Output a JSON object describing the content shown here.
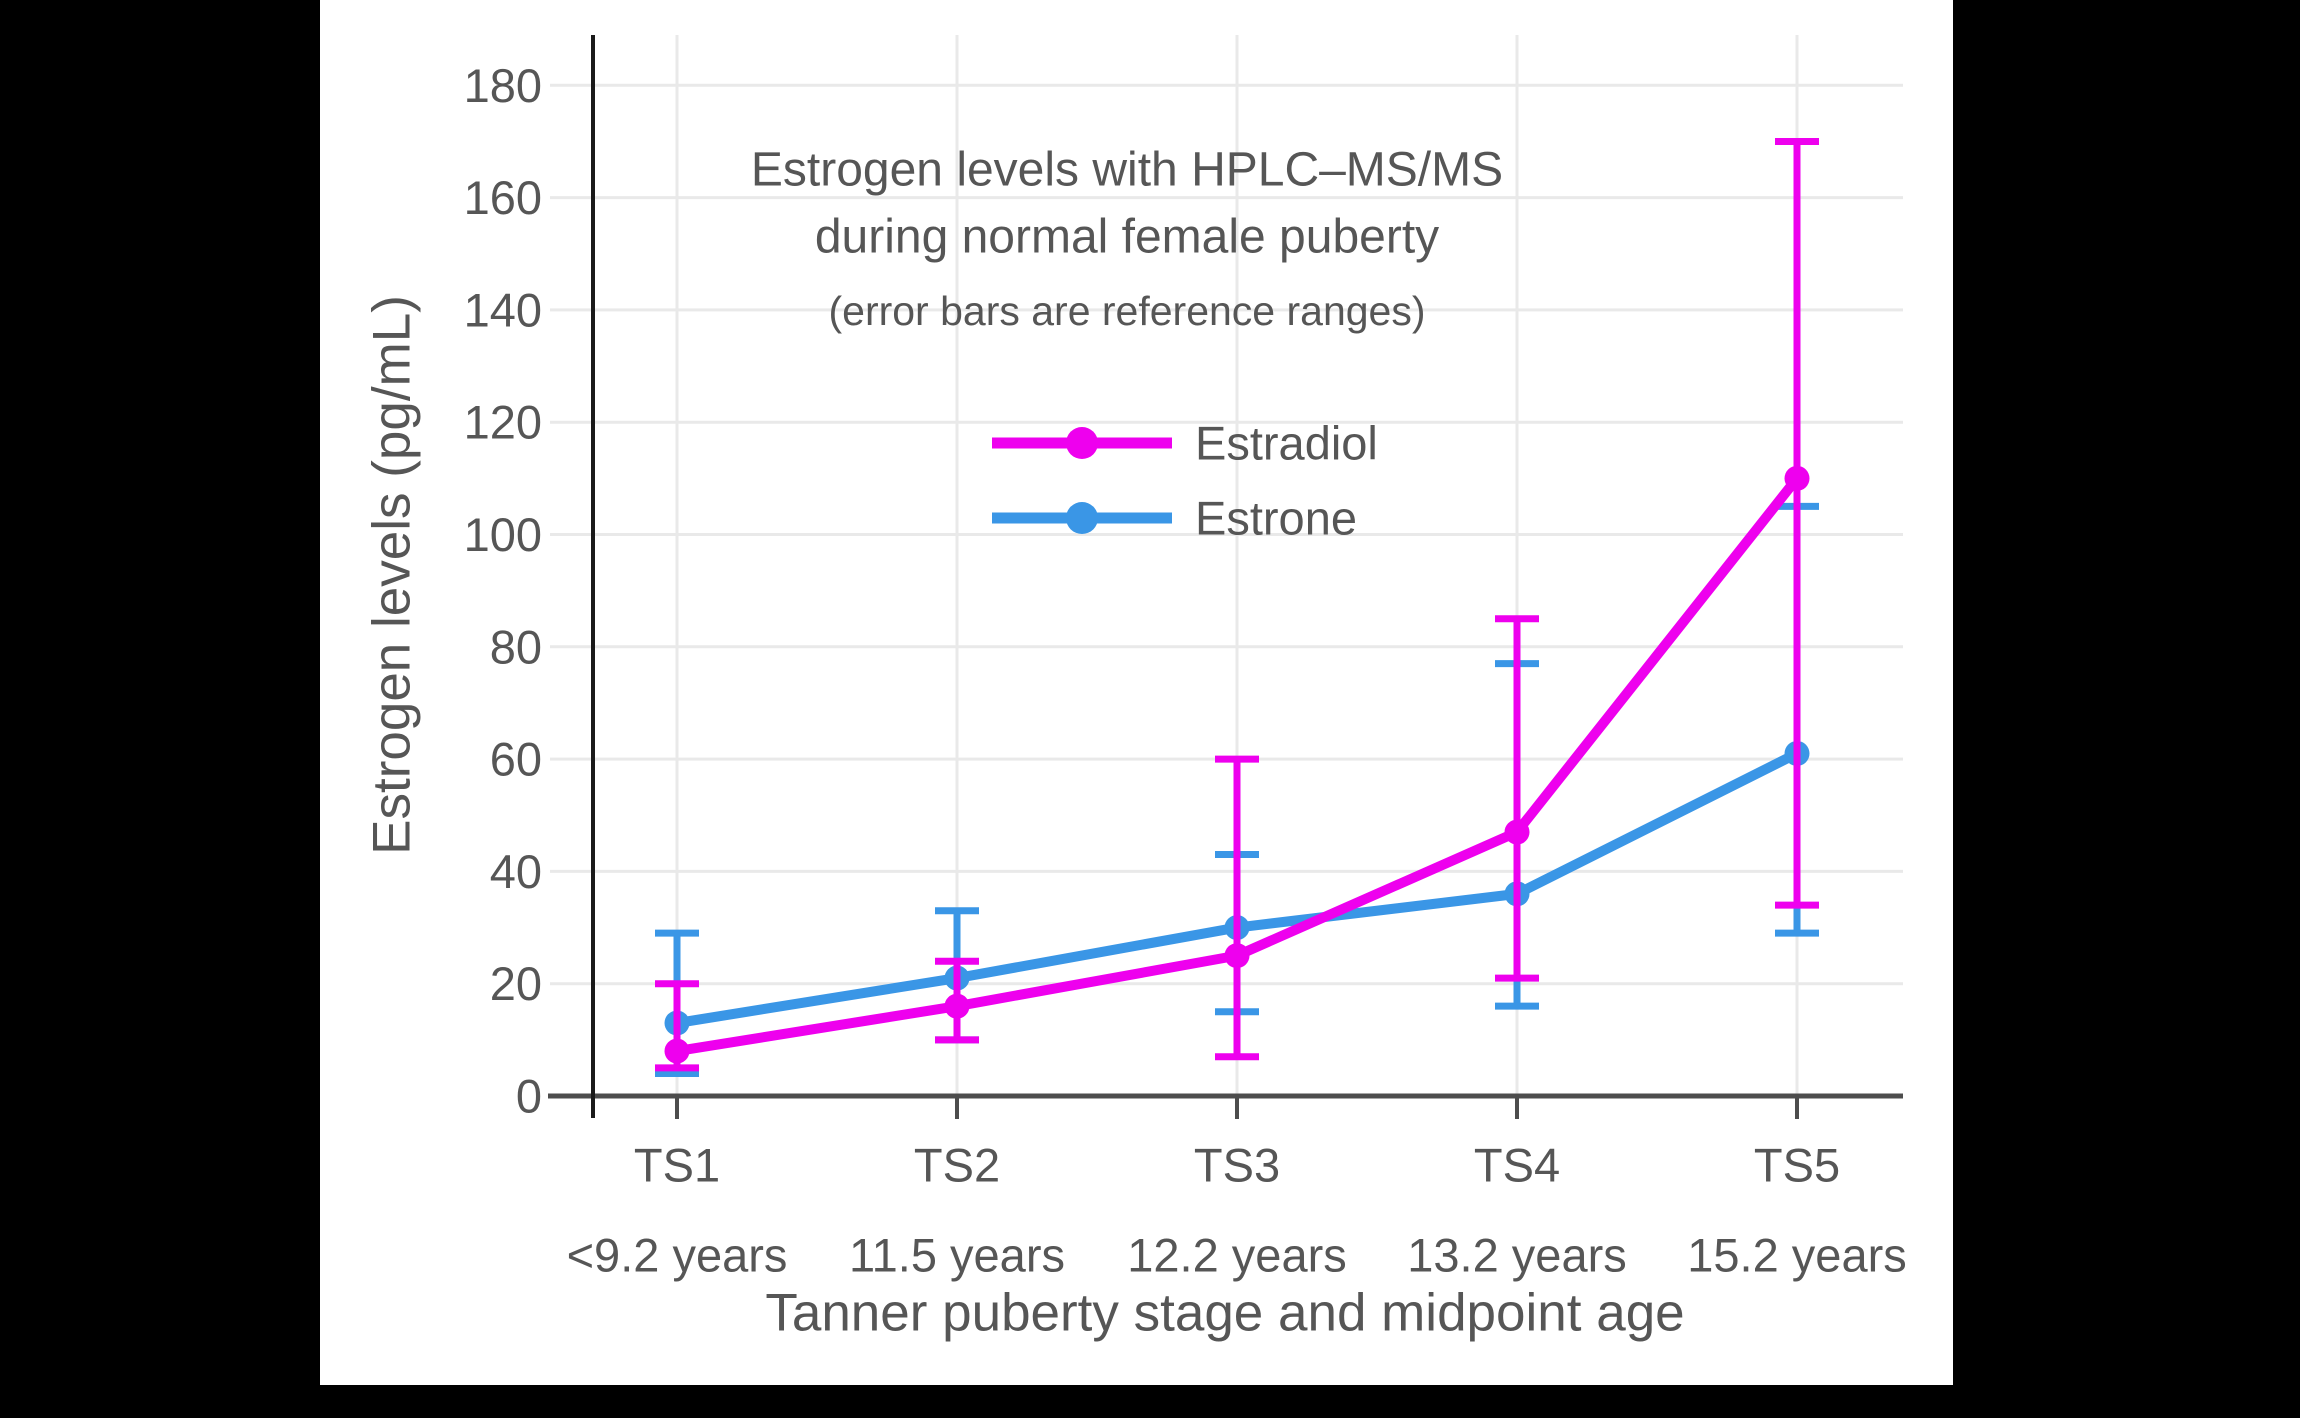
{
  "figure_title": {
    "line1": "Estrogen levels with HPLC–MS/MS",
    "line2": "during normal female puberty",
    "subtitle": "(error bars are reference ranges)"
  },
  "chart_data": {
    "type": "line",
    "title": "Estrogen levels with HPLC–MS/MS during normal female puberty",
    "subtitle": "(error bars are reference ranges)",
    "xlabel": "Tanner puberty stage and midpoint age",
    "ylabel": "Estrogen levels (pg/mL)",
    "ylim": [
      0,
      188
    ],
    "yticks": [
      0,
      20,
      40,
      60,
      80,
      100,
      120,
      140,
      160,
      180
    ],
    "grid": true,
    "legend_position": "upper-center-inside",
    "categories": [
      "TS1",
      "TS2",
      "TS3",
      "TS4",
      "TS5"
    ],
    "category_sublabels": [
      "<9.2 years",
      "11.5 years",
      "12.2 years",
      "13.2 years",
      "15.2 years"
    ],
    "error_bar_meaning": "reference ranges",
    "series": [
      {
        "name": "Estrone",
        "color": "#3A96E6",
        "values": [
          13,
          21,
          30,
          36,
          61
        ],
        "error_low": [
          4,
          10,
          15,
          16,
          29
        ],
        "error_high": [
          29,
          33,
          43,
          77,
          105
        ]
      },
      {
        "name": "Estradiol",
        "color": "#EE00EE",
        "values": [
          8,
          16,
          25,
          47,
          110
        ],
        "error_low": [
          5,
          10,
          7,
          21,
          34
        ],
        "error_high": [
          20,
          24,
          60,
          85,
          170
        ]
      }
    ]
  },
  "legend": {
    "items": [
      {
        "label": "Estradiol",
        "color": "#EE00EE"
      },
      {
        "label": "Estrone",
        "color": "#3A96E6"
      }
    ]
  },
  "colors": {
    "text": "#565656",
    "grid": "#e9e9e9",
    "x_spine": "#4d4d4d",
    "y_spine": "#1a1a1a",
    "background": "#ffffff",
    "frame": "#000000"
  }
}
